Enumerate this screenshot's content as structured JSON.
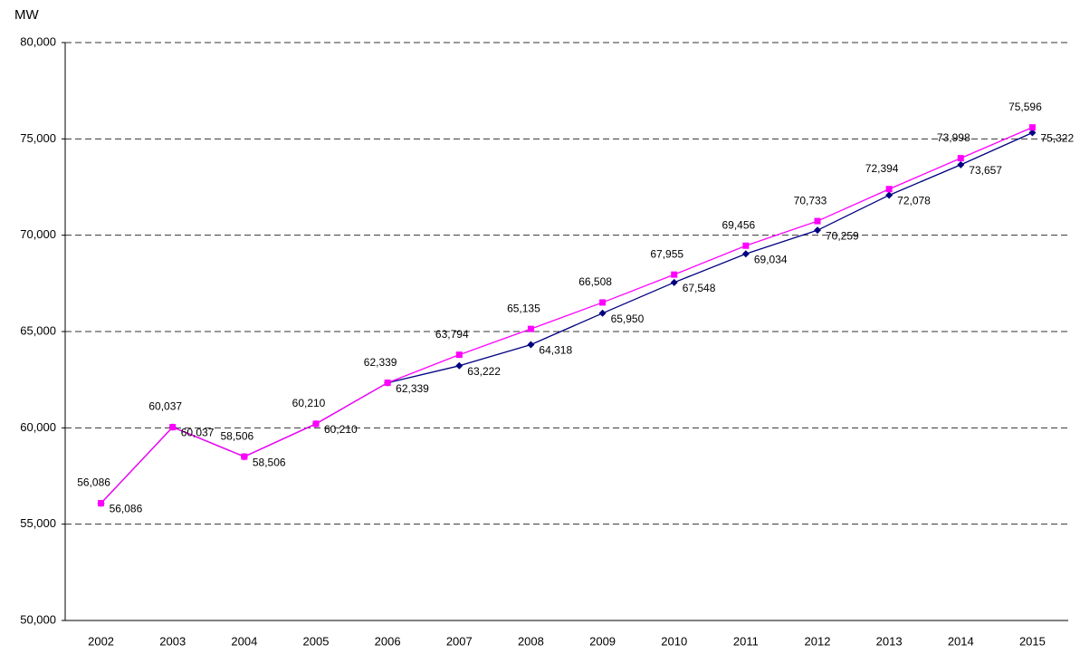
{
  "chart_data": {
    "type": "line",
    "y_label": "MW",
    "categories": [
      "2002",
      "2003",
      "2004",
      "2005",
      "2006",
      "2007",
      "2008",
      "2009",
      "2010",
      "2011",
      "2012",
      "2013",
      "2014",
      "2015"
    ],
    "series": [
      {
        "color": "#000080",
        "marker": "diamond",
        "values": [
          56086,
          60037,
          58506,
          60210,
          62339,
          63222,
          64318,
          65950,
          67548,
          69034,
          70259,
          72078,
          73657,
          75322
        ],
        "value_labels": [
          "56,086",
          "60,037",
          "58,506",
          "60,210",
          "62,339",
          "63,222",
          "64,318",
          "65,950",
          "67,548",
          "69,034",
          "70,259",
          "72,078",
          "73,657",
          "75,322"
        ]
      },
      {
        "color": "#ff00ff",
        "marker": "square",
        "values": [
          56086,
          60037,
          58506,
          60210,
          62339,
          63794,
          65135,
          66508,
          67955,
          69456,
          70733,
          72394,
          73998,
          75596
        ],
        "value_labels": [
          "56,086",
          "60,037",
          "58,506",
          "60,210",
          "62,339",
          "63,794",
          "65,135",
          "66,508",
          "67,955",
          "69,456",
          "70,733",
          "72,394",
          "73,998",
          "75,596"
        ]
      }
    ],
    "ylim": [
      50000,
      80000
    ],
    "yticks": [
      {
        "value": 50000,
        "label": "50,000"
      },
      {
        "value": 55000,
        "label": "55,000"
      },
      {
        "value": 60000,
        "label": "60,000"
      },
      {
        "value": 65000,
        "label": "65,000"
      },
      {
        "value": 70000,
        "label": "70,000"
      },
      {
        "value": 75000,
        "label": "75,000"
      },
      {
        "value": 80000,
        "label": "80,000"
      }
    ],
    "grid": true
  }
}
